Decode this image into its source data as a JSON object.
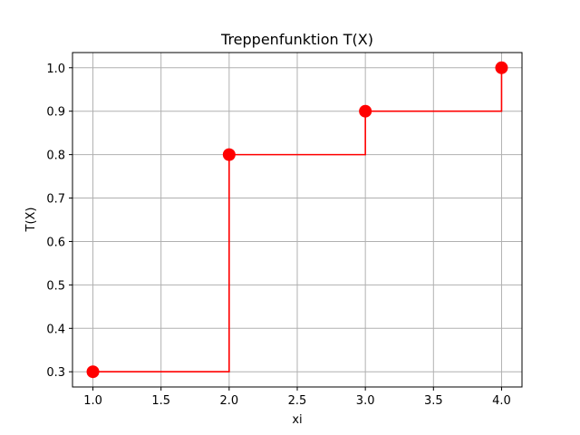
{
  "chart_data": {
    "type": "line",
    "step": "post",
    "title": "Treppenfunktion T(X)",
    "xlabel": "xi",
    "ylabel": "T(X)",
    "xlim": [
      0.85,
      4.15
    ],
    "ylim": [
      0.265,
      1.035
    ],
    "xticks": [
      "1.0",
      "1.5",
      "2.0",
      "2.5",
      "3.0",
      "3.5",
      "4.0"
    ],
    "yticks": [
      "0.3",
      "0.4",
      "0.5",
      "0.6",
      "0.7",
      "0.8",
      "0.9",
      "1.0"
    ],
    "grid": true,
    "series": [
      {
        "x": [
          1,
          2,
          3,
          4
        ],
        "values": [
          0.3,
          0.8,
          0.9,
          1.0
        ],
        "color": "#ff0000",
        "markers": true
      }
    ]
  }
}
